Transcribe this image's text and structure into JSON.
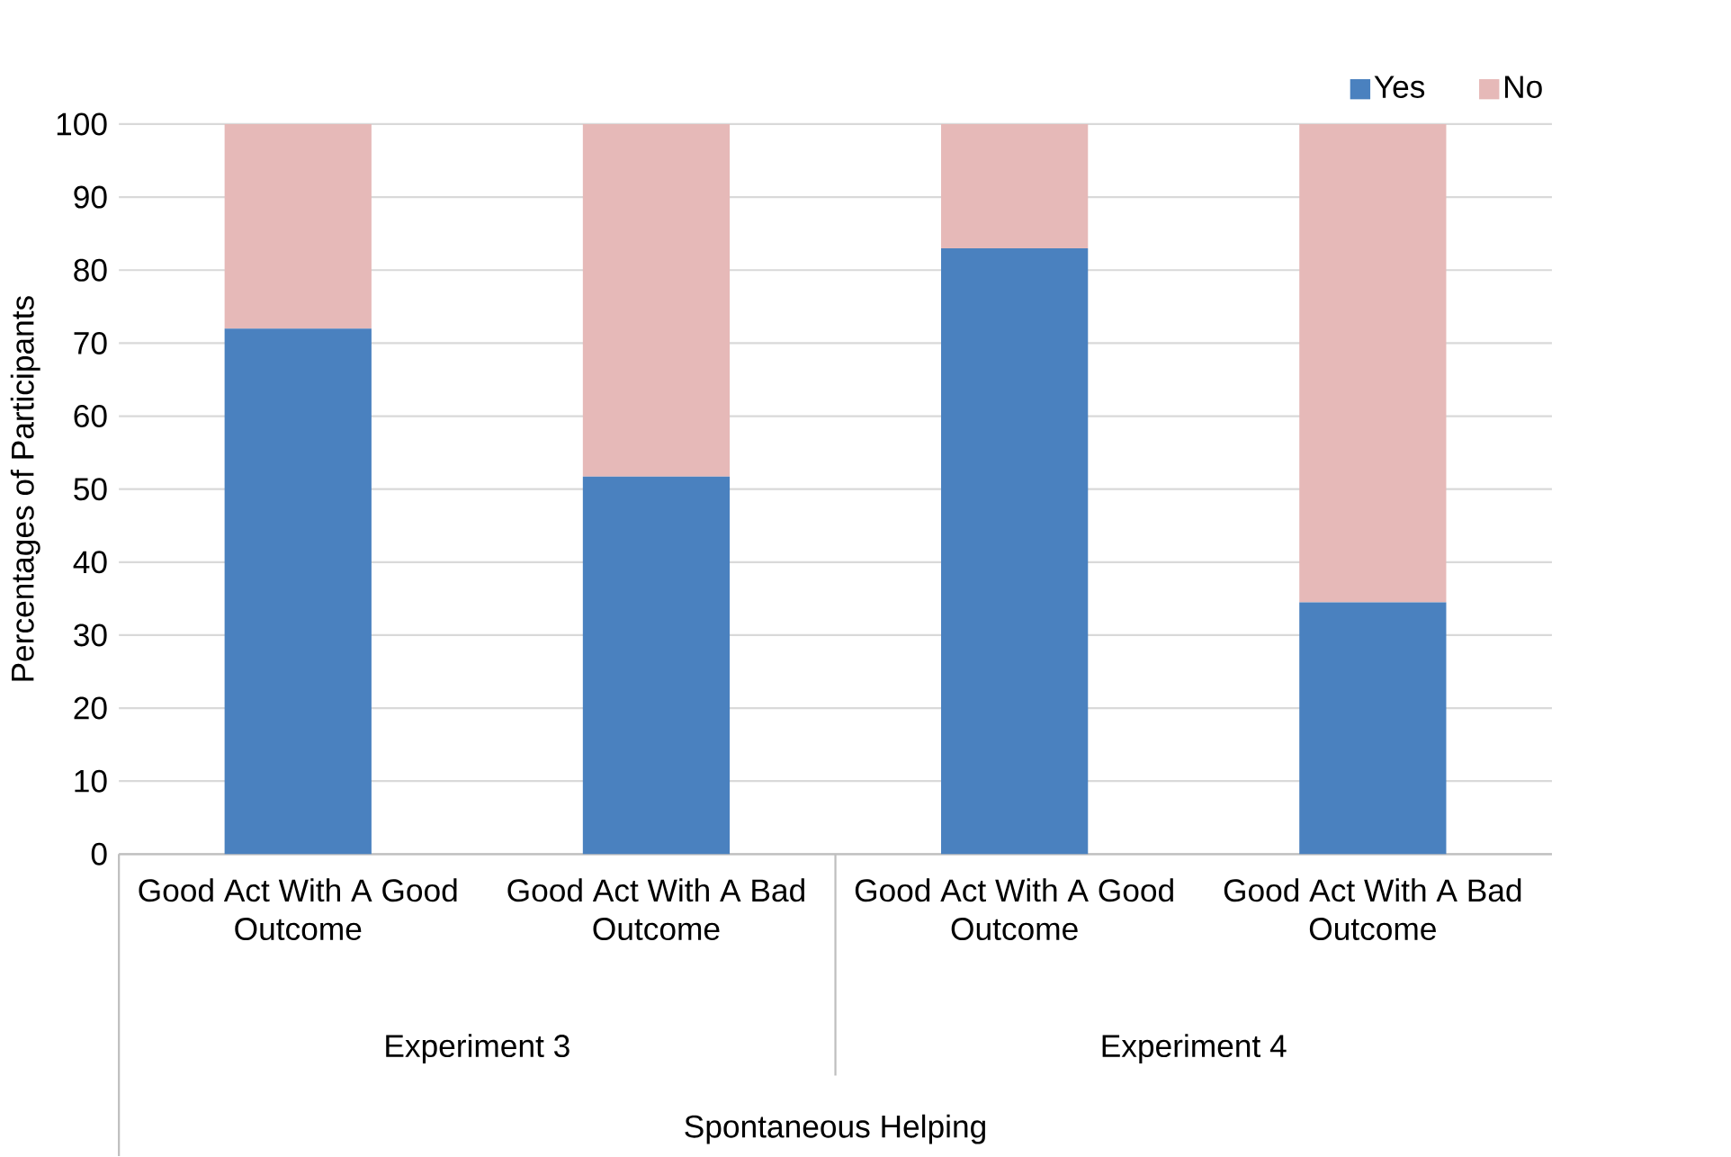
{
  "chart_data": {
    "type": "bar",
    "stacked": true,
    "ylabel": "Percentages of Participants",
    "categories": [
      "Good Act With A Good Outcome",
      "Good Act With A Bad Outcome",
      "Good Act With A Good Outcome",
      "Good Act With A Bad Outcome"
    ],
    "series": [
      {
        "name": "Yes",
        "color": "#4a81bf",
        "values": [
          72,
          51.7,
          83,
          34.5
        ]
      },
      {
        "name": "No",
        "color": "#e6b9b8",
        "values": [
          28,
          48.3,
          17,
          65.5
        ]
      }
    ],
    "annotations": [
      "Experiment 3",
      "Experiment 4",
      "Spontaneous Helping"
    ],
    "ylim": [
      0,
      100
    ],
    "yticks": [
      0,
      10,
      20,
      30,
      40,
      50,
      60,
      70,
      80,
      90,
      100
    ],
    "grid": "y",
    "legend": "top right"
  }
}
